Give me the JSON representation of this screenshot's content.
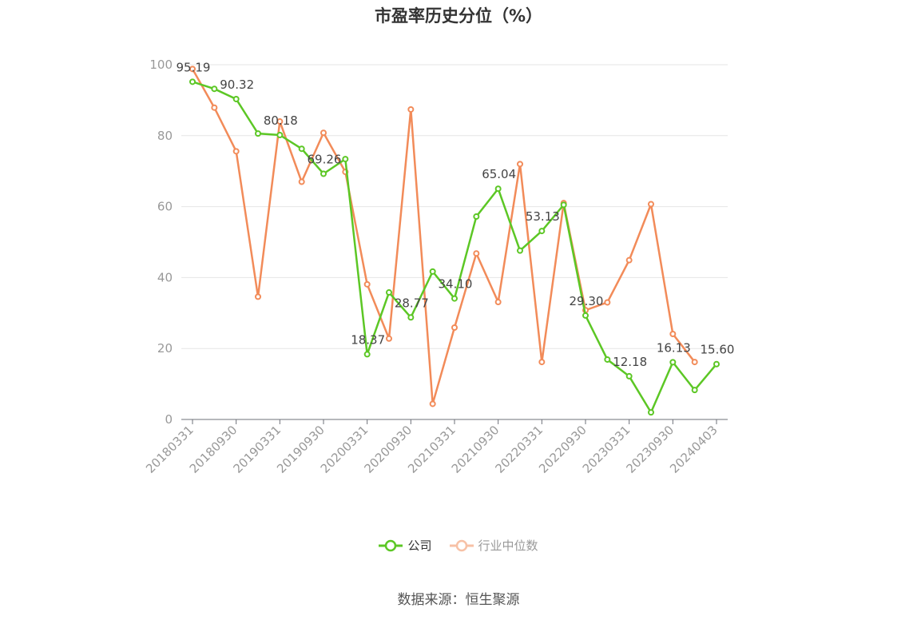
{
  "chart_data": {
    "type": "line",
    "title": "市盈率历史分位（%）",
    "x": [
      "20180331",
      "20180630",
      "20180930",
      "20181231",
      "20190331",
      "20190630",
      "20190930",
      "20191231",
      "20200331",
      "20200630",
      "20200930",
      "20201231",
      "20210331",
      "20210630",
      "20210930",
      "20211231",
      "20220331",
      "20220630",
      "20220930",
      "20221231",
      "20230331",
      "20230630",
      "20230930",
      "20231231",
      "20240403"
    ],
    "xticks": [
      "20180331",
      "20180930",
      "20190331",
      "20190930",
      "20200331",
      "20200930",
      "20210331",
      "20210930",
      "20220331",
      "20220930",
      "20230331",
      "20230930",
      "20240403"
    ],
    "ylim": [
      0,
      100
    ],
    "yticks": [
      0,
      20,
      40,
      60,
      80,
      100
    ],
    "grid": true,
    "legend_position": "bottom",
    "series": [
      {
        "name": "公司",
        "color": "#5cc725",
        "values": [
          95.19,
          93.2,
          90.32,
          80.6,
          80.18,
          76.3,
          69.26,
          73.4,
          18.37,
          35.8,
          28.77,
          41.7,
          34.1,
          57.2,
          65.04,
          47.6,
          53.13,
          60.5,
          29.3,
          16.9,
          12.18,
          2.0,
          16.13,
          8.3,
          15.6
        ],
        "labels": [
          "95.19",
          "",
          "90.32",
          "",
          "80.18",
          "",
          "69.26",
          "",
          "18.37",
          "",
          "28.77",
          "",
          "34.10",
          "",
          "65.04",
          "",
          "53.13",
          "",
          "29.30",
          "",
          "12.18",
          "",
          "16.13",
          "",
          "15.60"
        ]
      },
      {
        "name": "行业中位数",
        "color": "#f28b59",
        "values": [
          98.8,
          87.9,
          75.6,
          34.6,
          84.0,
          67.0,
          80.8,
          69.8,
          38.1,
          22.8,
          87.4,
          4.4,
          25.9,
          46.8,
          33.1,
          72.0,
          16.2,
          61.0,
          30.8,
          33.0,
          44.9,
          60.7,
          24.1,
          16.2,
          null
        ]
      }
    ]
  },
  "footer": {
    "source": "数据来源：恒生聚源"
  }
}
